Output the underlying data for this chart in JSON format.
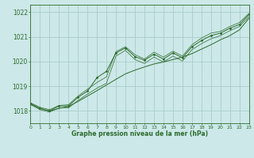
{
  "title": "Graphe pression niveau de la mer (hPa)",
  "bg_color": "#cce8e8",
  "grid_color": "#aacccc",
  "line_color": "#2d6b2d",
  "x_min": 0,
  "x_max": 23,
  "y_min": 1017.5,
  "y_max": 1022.3,
  "y_ticks": [
    1018,
    1019,
    1020,
    1021,
    1022
  ],
  "x_ticks": [
    0,
    1,
    2,
    3,
    4,
    5,
    6,
    7,
    8,
    9,
    10,
    11,
    12,
    13,
    14,
    15,
    16,
    17,
    18,
    19,
    20,
    21,
    22,
    23
  ],
  "main_line": [
    [
      0,
      1018.3
    ],
    [
      1,
      1018.1
    ],
    [
      2,
      1018.0
    ],
    [
      3,
      1018.2
    ],
    [
      4,
      1018.2
    ],
    [
      5,
      1018.55
    ],
    [
      6,
      1018.8
    ],
    [
      7,
      1019.35
    ],
    [
      8,
      1019.6
    ],
    [
      9,
      1020.35
    ],
    [
      10,
      1020.55
    ],
    [
      11,
      1020.2
    ],
    [
      12,
      1020.05
    ],
    [
      13,
      1020.3
    ],
    [
      14,
      1020.1
    ],
    [
      15,
      1020.35
    ],
    [
      16,
      1020.15
    ],
    [
      17,
      1020.6
    ],
    [
      18,
      1020.85
    ],
    [
      19,
      1021.05
    ],
    [
      20,
      1021.15
    ],
    [
      21,
      1021.35
    ],
    [
      22,
      1021.5
    ],
    [
      23,
      1021.9
    ]
  ],
  "smooth_line": [
    [
      0,
      1018.28
    ],
    [
      1,
      1018.1
    ],
    [
      2,
      1018.0
    ],
    [
      3,
      1018.1
    ],
    [
      4,
      1018.18
    ],
    [
      5,
      1018.38
    ],
    [
      6,
      1018.6
    ],
    [
      7,
      1018.82
    ],
    [
      8,
      1019.05
    ],
    [
      9,
      1019.28
    ],
    [
      10,
      1019.5
    ],
    [
      11,
      1019.65
    ],
    [
      12,
      1019.78
    ],
    [
      13,
      1019.9
    ],
    [
      14,
      1019.98
    ],
    [
      15,
      1020.08
    ],
    [
      16,
      1020.18
    ],
    [
      17,
      1020.32
    ],
    [
      18,
      1020.5
    ],
    [
      19,
      1020.68
    ],
    [
      20,
      1020.88
    ],
    [
      21,
      1021.05
    ],
    [
      22,
      1021.28
    ],
    [
      23,
      1021.75
    ]
  ],
  "upper_line": [
    [
      0,
      1018.33
    ],
    [
      1,
      1018.15
    ],
    [
      2,
      1018.05
    ],
    [
      3,
      1018.22
    ],
    [
      4,
      1018.25
    ],
    [
      5,
      1018.6
    ],
    [
      6,
      1018.88
    ],
    [
      7,
      1019.15
    ],
    [
      8,
      1019.38
    ],
    [
      9,
      1020.4
    ],
    [
      10,
      1020.6
    ],
    [
      11,
      1020.28
    ],
    [
      12,
      1020.1
    ],
    [
      13,
      1020.38
    ],
    [
      14,
      1020.18
    ],
    [
      15,
      1020.42
    ],
    [
      16,
      1020.22
    ],
    [
      17,
      1020.68
    ],
    [
      18,
      1020.95
    ],
    [
      19,
      1021.15
    ],
    [
      20,
      1021.22
    ],
    [
      21,
      1021.42
    ],
    [
      22,
      1021.58
    ],
    [
      23,
      1021.95
    ]
  ],
  "lower_line": [
    [
      0,
      1018.25
    ],
    [
      1,
      1018.05
    ],
    [
      2,
      1017.95
    ],
    [
      3,
      1018.12
    ],
    [
      4,
      1018.12
    ],
    [
      5,
      1018.42
    ],
    [
      6,
      1018.68
    ],
    [
      7,
      1018.92
    ],
    [
      8,
      1019.12
    ],
    [
      9,
      1020.22
    ],
    [
      10,
      1020.45
    ],
    [
      11,
      1020.08
    ],
    [
      12,
      1019.92
    ],
    [
      13,
      1020.18
    ],
    [
      14,
      1019.98
    ],
    [
      15,
      1020.22
    ],
    [
      16,
      1020.02
    ],
    [
      17,
      1020.48
    ],
    [
      18,
      1020.72
    ],
    [
      19,
      1020.92
    ],
    [
      20,
      1021.05
    ],
    [
      21,
      1021.25
    ],
    [
      22,
      1021.42
    ],
    [
      23,
      1021.82
    ]
  ]
}
